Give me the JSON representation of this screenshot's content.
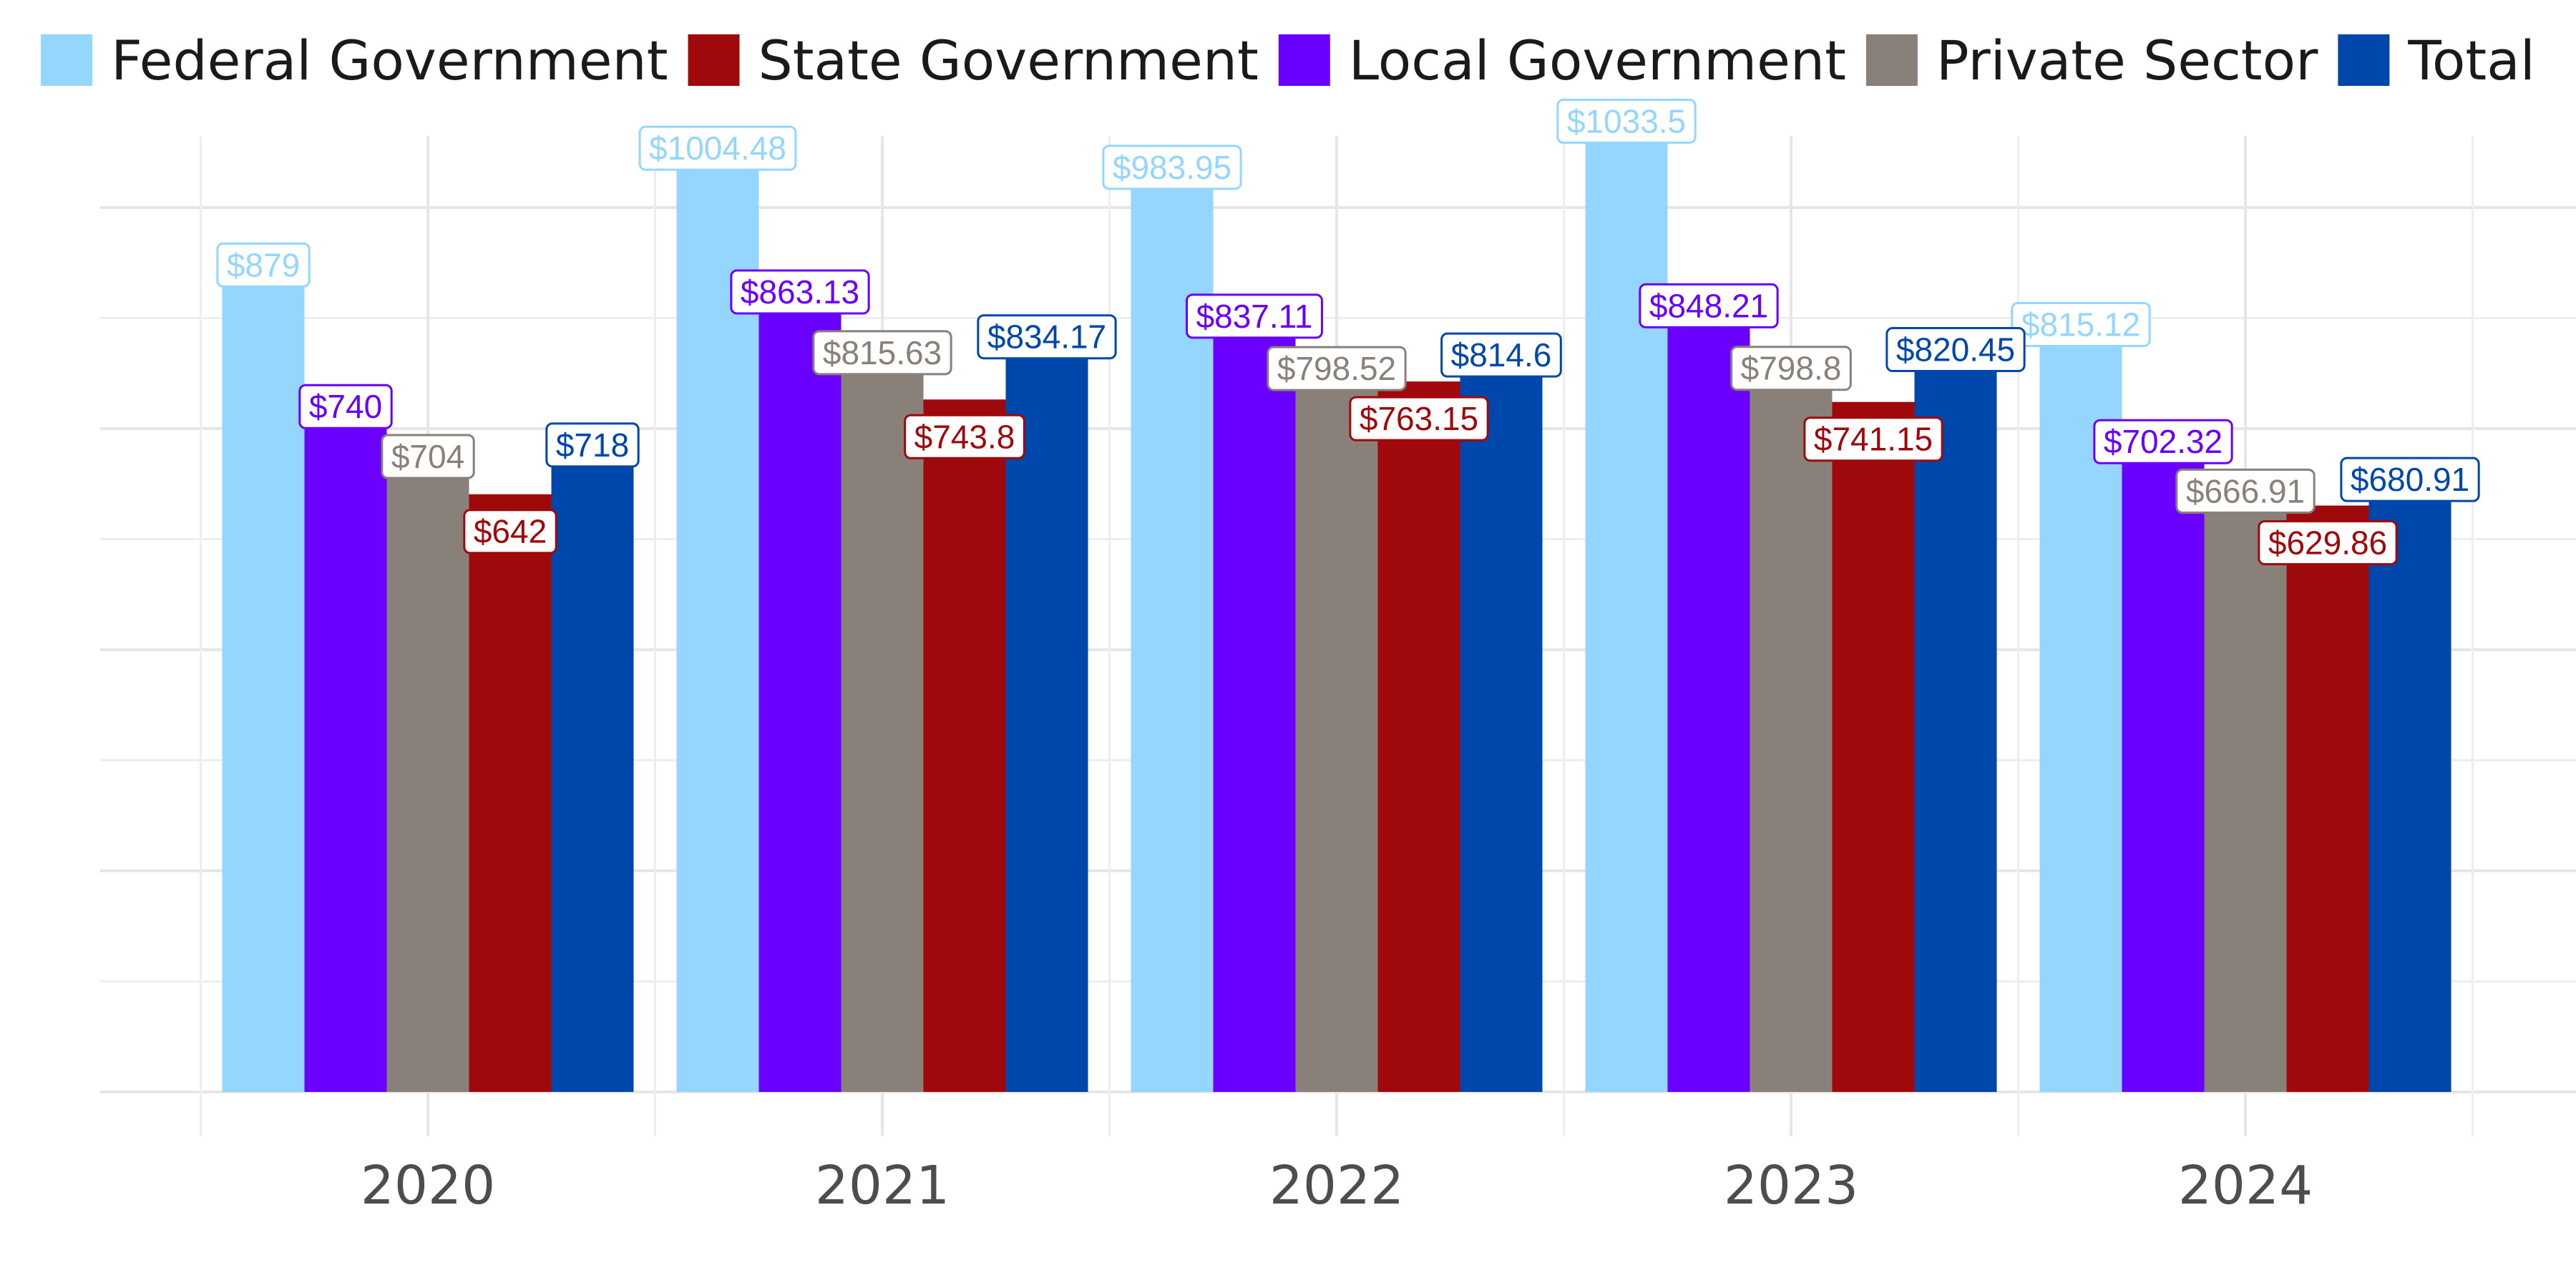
{
  "chart_data": {
    "type": "bar",
    "title": "",
    "xlabel": "",
    "ylabel": "",
    "categories": [
      "2020",
      "2021",
      "2022",
      "2023",
      "2024"
    ],
    "ylim": [
      0,
      1150
    ],
    "grid": true,
    "legend_position": "top",
    "value_prefix": "$",
    "series": [
      {
        "name": "Federal Government",
        "color": "#94D6FF",
        "values": [
          879,
          1004.48,
          983.95,
          1033.5,
          815.12
        ],
        "labels": [
          "$879",
          "$1004.48",
          "$983.95",
          "$1033.5",
          "$815.12"
        ]
      },
      {
        "name": "Local Government",
        "color": "#6A00FF",
        "values": [
          740,
          863.13,
          837.11,
          848.21,
          702.32
        ],
        "labels": [
          "$740",
          "$863.13",
          "$837.11",
          "$848.21",
          "$702.32"
        ]
      },
      {
        "name": "Private Sector",
        "color": "#8A807A",
        "values": [
          704,
          815.63,
          798.52,
          798.8,
          666.91
        ],
        "labels": [
          "$704",
          "$815.63",
          "$798.52",
          "$798.8",
          "$666.91"
        ]
      },
      {
        "name": "State Government",
        "color": "#A0090C",
        "values": [
          642,
          743.8,
          763.15,
          741.15,
          629.86
        ],
        "labels": [
          "$642",
          "$743.8",
          "$763.15",
          "$741.15",
          "$629.86"
        ]
      },
      {
        "name": "Total",
        "color": "#0047AB",
        "values": [
          718,
          834.17,
          814.6,
          820.45,
          680.91
        ],
        "labels": [
          "$718",
          "$834.17",
          "$814.6",
          "$820.45",
          "$680.91"
        ]
      }
    ],
    "legend_order": [
      "Federal Government",
      "State Government",
      "Local Government",
      "Private Sector",
      "Total"
    ]
  }
}
